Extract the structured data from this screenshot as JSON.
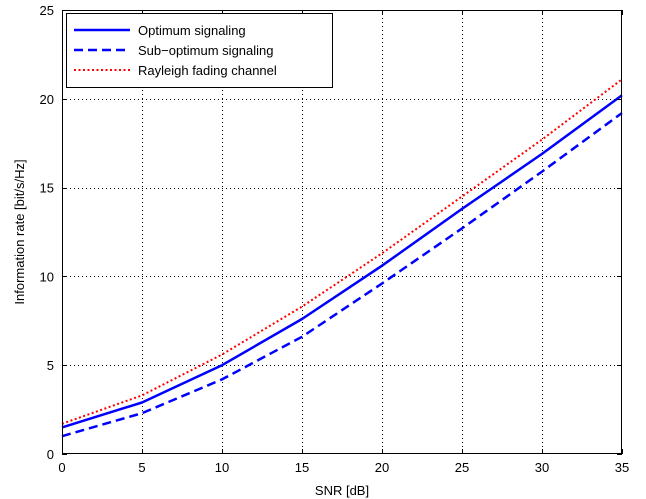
{
  "chart_data": {
    "type": "line",
    "title": "",
    "xlabel": "SNR [dB]",
    "ylabel": "Information rate [bit/s/Hz]",
    "xlim": [
      0,
      35
    ],
    "ylim": [
      0,
      25
    ],
    "xticks": [
      0,
      5,
      10,
      15,
      20,
      25,
      30,
      35
    ],
    "yticks": [
      0,
      5,
      10,
      15,
      20,
      25
    ],
    "xtick_labels": [
      "0",
      "5",
      "10",
      "15",
      "20",
      "25",
      "30",
      "35"
    ],
    "ytick_labels": [
      "0",
      "5",
      "10",
      "15",
      "20",
      "25"
    ],
    "grid": true,
    "legend_position": "top-left",
    "x": [
      0,
      5,
      10,
      15,
      20,
      25,
      30,
      35
    ],
    "series": [
      {
        "name": "Optimum signaling",
        "values": [
          1.5,
          2.9,
          5.0,
          7.6,
          10.6,
          13.8,
          16.9,
          20.2
        ],
        "color": "#0000ff",
        "style": "solid"
      },
      {
        "name": "Sub−optimum signaling",
        "values": [
          1.0,
          2.3,
          4.2,
          6.6,
          9.6,
          12.7,
          15.9,
          19.2
        ],
        "color": "#0000ff",
        "style": "dashed"
      },
      {
        "name": "Rayleigh fading channel",
        "values": [
          1.7,
          3.3,
          5.6,
          8.3,
          11.3,
          14.5,
          17.7,
          21.1
        ],
        "color": "#ff0000",
        "style": "dotted"
      }
    ]
  }
}
